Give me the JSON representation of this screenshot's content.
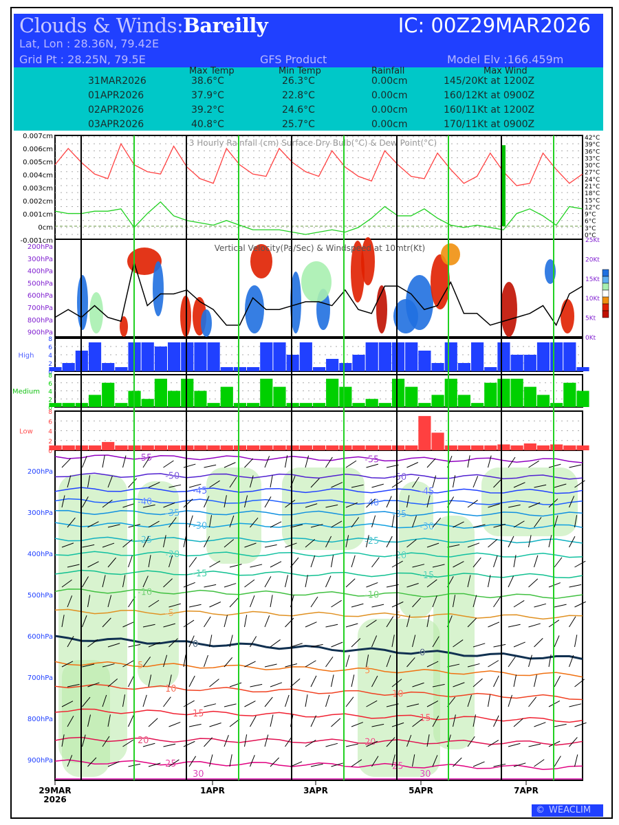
{
  "header": {
    "title_prefix": "Clouds & Winds:",
    "station": "Bareilly",
    "ic": "IC: 00Z29MAR2026",
    "latlon": "Lat, Lon : 28.36N, 79.42E",
    "gridpt": "Grid Pt  : 28.25N, 79.5E",
    "product": "GFS Product",
    "elev": "Model Elv :166.459m"
  },
  "summary": {
    "columns": [
      "Max Temp",
      "Min Temp",
      "Rainfall",
      "Max Wind"
    ],
    "rows": [
      {
        "date": "31MAR2026",
        "max": "38.6°C",
        "min": "26.3°C",
        "rain": "0.00cm",
        "wind": "145/20Kt at 1200Z"
      },
      {
        "date": "01APR2026",
        "max": "37.9°C",
        "min": "22.8°C",
        "rain": "0.00cm",
        "wind": "160/12Kt at 0900Z"
      },
      {
        "date": "02APR2026",
        "max": "39.2°C",
        "min": "24.6°C",
        "rain": "0.00cm",
        "wind": "160/11Kt at 1200Z"
      },
      {
        "date": "03APR2026",
        "max": "40.8°C",
        "min": "25.7°C",
        "rain": "0.00cm",
        "wind": "170/11Kt at 0900Z"
      }
    ]
  },
  "logo": "WEACLIM",
  "chart_data": [
    {
      "type": "line",
      "title": "3 Hourly Rainfall (cm)  Surface Dry Bulb(°C)  & Dew Point(°C)",
      "x_step_hours": 6,
      "left_ticks": [
        "0.007cm",
        "0.006cm",
        "0.005cm",
        "0.004cm",
        "0.003cm",
        "0.002cm",
        "0.001cm",
        "0cm",
        "-0.001cm"
      ],
      "right_ticks": [
        "42°C",
        "39°C",
        "36°C",
        "33°C",
        "30°C",
        "27°C",
        "24°C",
        "21°C",
        "18°C",
        "15°C",
        "12°C",
        "9°C",
        "6°C",
        "3°C",
        "0°C"
      ],
      "ylim_rain": [
        -0.001,
        0.007
      ],
      "ylim_temp": [
        0,
        42
      ],
      "series": [
        {
          "name": "Surface Dry Bulb",
          "color": "#ff4040",
          "values": [
            30,
            37,
            31,
            26,
            24,
            39,
            30,
            27,
            26,
            38,
            29,
            24,
            22,
            37,
            30,
            26,
            25,
            37,
            31,
            27,
            25,
            36,
            29,
            25,
            23,
            36,
            30,
            25,
            24,
            35,
            28,
            22,
            25,
            35,
            27,
            21,
            22,
            35,
            28,
            22,
            26
          ]
        },
        {
          "name": "Dew Point",
          "color": "#20d020",
          "values": [
            10,
            9,
            9,
            10,
            10,
            11,
            3,
            9,
            14,
            8,
            6,
            5,
            4,
            6,
            4,
            2,
            2,
            2,
            1,
            0,
            1,
            2,
            1,
            3,
            7,
            12,
            8,
            8,
            11,
            7,
            4,
            3,
            4,
            3,
            2,
            9,
            11,
            8,
            4,
            12,
            11
          ]
        },
        {
          "name": "3 Hourly Rainfall",
          "color": "#00c000",
          "values": [
            0,
            0,
            0,
            0,
            0,
            0,
            0,
            0,
            0,
            0,
            0,
            0,
            0,
            0,
            0,
            0,
            0,
            0,
            0,
            0,
            0,
            0,
            0,
            0,
            0,
            0,
            0,
            0,
            0,
            0,
            0,
            0,
            0,
            0,
            0.0062,
            0,
            0,
            0,
            0,
            0,
            0
          ]
        }
      ]
    },
    {
      "type": "heatmap",
      "title": "Vertical Velocity(Pa/Sec) & Windspeed at 10mtr(Kt)",
      "left_ticks": [
        "200hPa",
        "300hPa",
        "400hPa",
        "500hPa",
        "600hPa",
        "700hPa",
        "800hPa",
        "900hPa"
      ],
      "right_ticks": [
        "25Kt",
        "20Kt",
        "15Kt",
        "10Kt",
        "5Kt",
        "0Kt"
      ],
      "ylim_wind": [
        0,
        25
      ],
      "windspeed": [
        5,
        7,
        5,
        8,
        5,
        4,
        19,
        8,
        11,
        11,
        12,
        9,
        7,
        3,
        3,
        10,
        7,
        7,
        8,
        9,
        9,
        8,
        12,
        7,
        6,
        13,
        13,
        11,
        7,
        8,
        14,
        6,
        6,
        3,
        4,
        5,
        6,
        8,
        3,
        11,
        13
      ]
    },
    {
      "type": "bar",
      "name": "High",
      "color": "#2040ff",
      "ticks": [
        "8",
        "6",
        "4",
        "2",
        "0"
      ],
      "ylim": [
        0,
        8
      ],
      "values": [
        1,
        2,
        5,
        7,
        2,
        1,
        7,
        7,
        6,
        7,
        7,
        7,
        7,
        1,
        1,
        1,
        7,
        7,
        4,
        7,
        1,
        3,
        2,
        4,
        7,
        7,
        7,
        7,
        5,
        2,
        7,
        2,
        7,
        1,
        7,
        4,
        4,
        7,
        7,
        7,
        1
      ]
    },
    {
      "type": "bar",
      "name": "Medium",
      "color": "#00d000",
      "ticks": [
        "8",
        "6",
        "4",
        "2",
        "0"
      ],
      "ylim": [
        0,
        8
      ],
      "values": [
        1,
        1,
        1,
        3,
        6,
        1,
        4,
        2,
        7,
        4,
        7,
        4,
        1,
        5,
        1,
        1,
        7,
        5,
        1,
        1,
        1,
        7,
        5,
        1,
        2,
        1,
        7,
        5,
        1,
        3,
        7,
        3,
        1,
        6,
        7,
        7,
        5,
        3,
        1,
        6,
        4
      ]
    },
    {
      "type": "bar",
      "name": "Low",
      "color": "#ff4040",
      "ticks": [
        "8",
        "6",
        "4",
        "2",
        "0"
      ],
      "ylim": [
        0,
        8
      ],
      "values": [
        1,
        1,
        1,
        1,
        1.7,
        1,
        1,
        1,
        1,
        1,
        1,
        1,
        1,
        1,
        1,
        1,
        1,
        1,
        1,
        1,
        1,
        1,
        1,
        1,
        1,
        1,
        1,
        1,
        7,
        3.6,
        1,
        1,
        1,
        1,
        1.2,
        1,
        1.4,
        1,
        1.2,
        1,
        1
      ]
    },
    {
      "type": "line",
      "name": "Isotherms & winds",
      "left_ticks": [
        "200hPa",
        "300hPa",
        "400hPa",
        "500hPa",
        "600hPa",
        "700hPa",
        "800hPa",
        "900hPa"
      ],
      "isotherms": [
        {
          "level": "-55",
          "p": [
            165,
            175
          ],
          "color": "#9000c0"
        },
        {
          "level": "-50",
          "p": [
            210,
            215
          ],
          "color": "#5020d0"
        },
        {
          "level": "-45",
          "p": [
            245,
            250
          ],
          "color": "#2040ff"
        },
        {
          "level": "-40",
          "p": [
            272,
            278
          ],
          "color": "#2060ff"
        },
        {
          "level": "-35",
          "p": [
            300,
            305
          ],
          "color": "#1090e0"
        },
        {
          "level": "-30",
          "p": [
            330,
            335
          ],
          "color": "#10a0e0"
        },
        {
          "level": "-25",
          "p": [
            365,
            370
          ],
          "color": "#10b0c0"
        },
        {
          "level": "-20",
          "p": [
            400,
            405
          ],
          "color": "#10c0a0"
        },
        {
          "level": "-15",
          "p": [
            445,
            455
          ],
          "color": "#10c090"
        },
        {
          "level": "-10",
          "p": [
            490,
            505
          ],
          "color": "#40c040"
        },
        {
          "level": "-5",
          "p": [
            540,
            555
          ],
          "color": "#e09020"
        },
        {
          "level": "0",
          "p": [
            605,
            655
          ],
          "color": "#103050"
        },
        {
          "level": "5",
          "p": [
            665,
            695
          ],
          "color": "#f07010"
        },
        {
          "level": "10",
          "p": [
            720,
            750
          ],
          "color": "#f04020"
        },
        {
          "level": "15",
          "p": [
            780,
            805
          ],
          "color": "#f02030"
        },
        {
          "level": "20",
          "p": [
            850,
            860
          ],
          "color": "#e01050"
        },
        {
          "level": "25",
          "p": [
            905,
            920
          ],
          "color": "#e00080"
        },
        {
          "level": "30",
          "p": [
            960,
            980
          ],
          "color": "#d000a0"
        }
      ]
    },
    {
      "x_ticks": [
        "29MAR\n2026",
        "1APR",
        "3APR",
        "5APR",
        "7APR"
      ]
    }
  ]
}
